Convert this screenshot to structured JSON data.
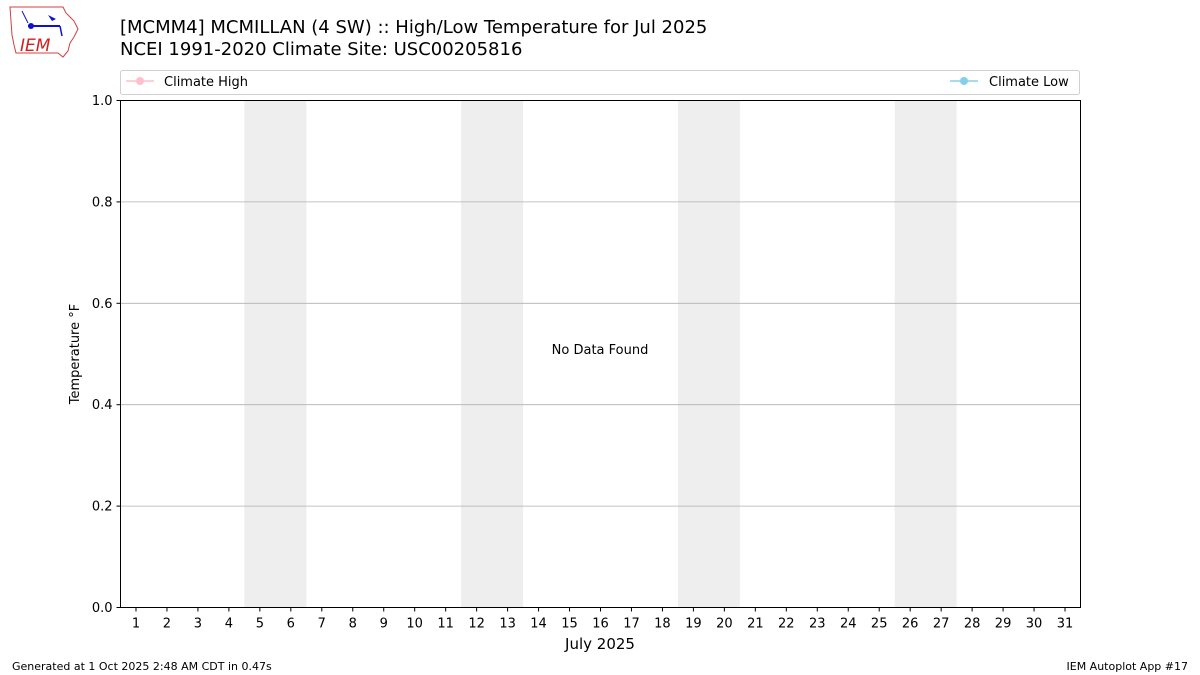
{
  "header": {
    "logo_text": "IEM",
    "title_line1": "[MCMM4] MCMILLAN  (4 SW) :: High/Low Temperature for Jul 2025",
    "title_line2": "NCEI 1991-2020 Climate Site: USC00205816"
  },
  "footer": {
    "left": "Generated at 1 Oct 2025 2:48 AM CDT in 0.47s",
    "right": "IEM Autoplot App #17"
  },
  "chart_data": {
    "type": "line",
    "title": "[MCMM4] MCMILLAN  (4 SW) :: High/Low Temperature for Jul 2025",
    "subtitle": "NCEI 1991-2020 Climate Site: USC00205816",
    "xlabel": "July 2025",
    "ylabel": "Temperature °F",
    "xlim": [
      0.5,
      31.5
    ],
    "ylim": [
      0,
      1
    ],
    "x_ticks": [
      1,
      2,
      3,
      4,
      5,
      6,
      7,
      8,
      9,
      10,
      11,
      12,
      13,
      14,
      15,
      16,
      17,
      18,
      19,
      20,
      21,
      22,
      23,
      24,
      25,
      26,
      27,
      28,
      29,
      30,
      31
    ],
    "y_ticks": [
      "0.0",
      "0.2",
      "0.4",
      "0.6",
      "0.8",
      "1.0"
    ],
    "grid": "y",
    "weekend_bands": [
      [
        4.5,
        6.5
      ],
      [
        11.5,
        13.5
      ],
      [
        18.5,
        20.5
      ],
      [
        25.5,
        27.5
      ]
    ],
    "band_color": "#eeeeee",
    "annotation": "No Data Found",
    "legend_placement": "top",
    "series": [
      {
        "name": "Climate High",
        "color": "#ffc0cb",
        "values": []
      },
      {
        "name": "Climate Low",
        "color": "#87ceeb",
        "values": []
      }
    ]
  }
}
